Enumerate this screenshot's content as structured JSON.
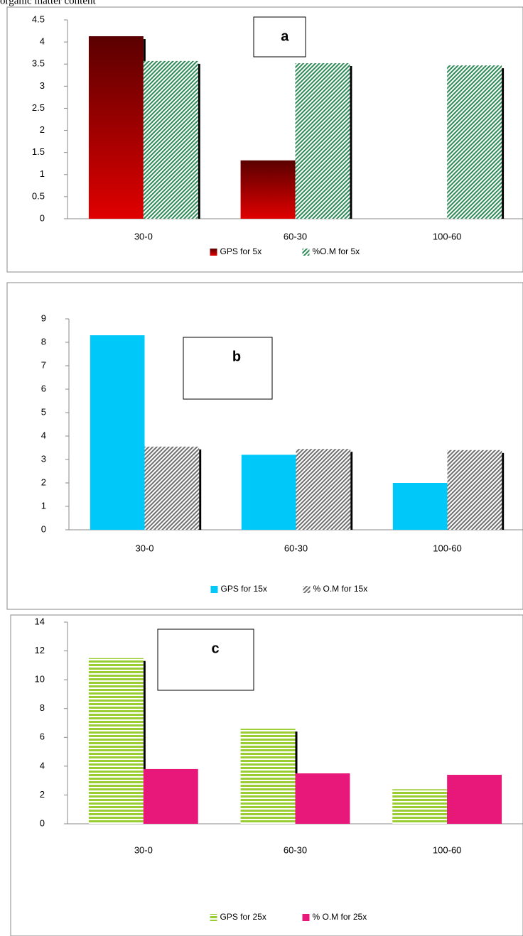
{
  "caption": "organic matter content",
  "chart_data": [
    {
      "type": "bar",
      "annotation": "a",
      "categories": [
        "30-0",
        "60-30",
        "100-60"
      ],
      "series": [
        {
          "name": "GPS for 5x",
          "color": "#e00000",
          "pattern": "gradient",
          "values": [
            4.13,
            1.32,
            0
          ]
        },
        {
          "name": "%O.M for 5x",
          "color": "#2e8b57",
          "pattern": "diagonal",
          "values": [
            3.57,
            3.52,
            3.47
          ]
        }
      ],
      "ylim": [
        0,
        4.5
      ],
      "yticks": [
        0,
        0.5,
        1,
        1.5,
        2,
        2.5,
        3,
        3.5,
        4,
        4.5
      ]
    },
    {
      "type": "bar",
      "annotation": "b",
      "categories": [
        "30-0",
        "60-30",
        "100-60"
      ],
      "series": [
        {
          "name": "GPS for 15x",
          "color": "#00c8f8",
          "pattern": "solid",
          "values": [
            8.3,
            3.2,
            2.0
          ]
        },
        {
          "name": "% O.M for 15x",
          "color": "#707070",
          "pattern": "diagonal",
          "values": [
            3.55,
            3.45,
            3.4
          ]
        }
      ],
      "ylim": [
        0,
        9
      ],
      "yticks": [
        0,
        1,
        2,
        3,
        4,
        5,
        6,
        7,
        8,
        9
      ]
    },
    {
      "type": "bar",
      "annotation": "c",
      "categories": [
        "30-0",
        "60-30",
        "100-60"
      ],
      "series": [
        {
          "name": "GPS for 25x",
          "color": "#9acd32",
          "pattern": "horizontal",
          "values": [
            11.5,
            6.6,
            2.4
          ]
        },
        {
          "name": "% O.M for 25x",
          "color": "#e8177a",
          "pattern": "solid",
          "values": [
            3.8,
            3.5,
            3.4
          ]
        }
      ],
      "ylim": [
        0,
        14
      ],
      "yticks": [
        0,
        2,
        4,
        6,
        8,
        10,
        12,
        14
      ]
    }
  ]
}
